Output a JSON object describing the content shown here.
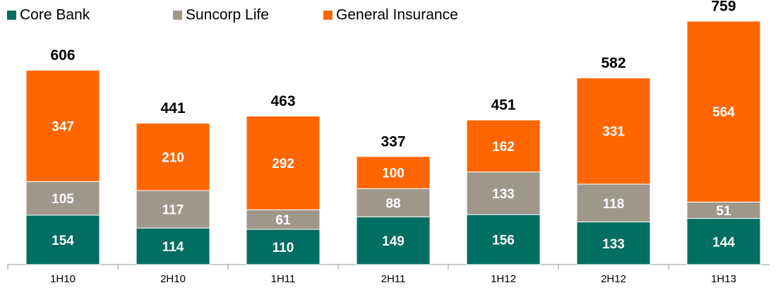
{
  "chart_data": {
    "type": "stacked_bar",
    "categories": [
      "1H10",
      "2H10",
      "1H11",
      "2H11",
      "1H12",
      "2H12",
      "1H13"
    ],
    "series": [
      {
        "name": "Core Bank",
        "color": "#006e61",
        "values": [
          154,
          114,
          110,
          149,
          156,
          133,
          144
        ]
      },
      {
        "name": "Suncorp Life",
        "color": "#a0978b",
        "values": [
          105,
          117,
          61,
          88,
          133,
          118,
          51
        ]
      },
      {
        "name": "General Insurance",
        "color": "#ff6600",
        "values": [
          347,
          210,
          292,
          100,
          162,
          331,
          564
        ]
      }
    ],
    "totals": [
      606,
      441,
      463,
      337,
      451,
      582,
      759
    ],
    "legend": "top-left"
  }
}
